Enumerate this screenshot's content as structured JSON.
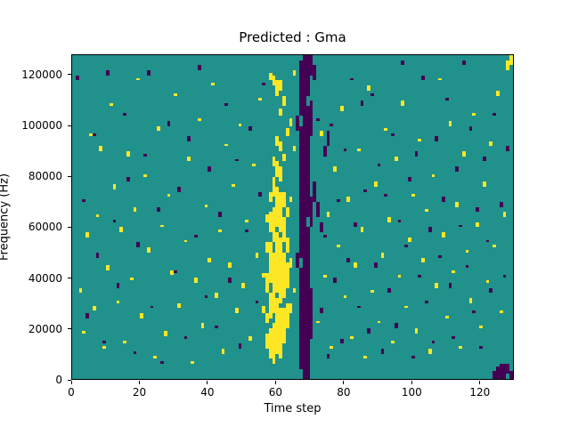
{
  "chart_data": {
    "type": "heatmap",
    "title": "Predicted : Gma",
    "xlabel": "Time step",
    "ylabel": "Frequency (Hz)",
    "x_range": [
      0,
      130
    ],
    "y_range_hz": [
      0,
      128000
    ],
    "x_ticks": [
      0,
      20,
      40,
      60,
      80,
      100,
      120
    ],
    "y_ticks": [
      0,
      20000,
      40000,
      60000,
      80000,
      100000,
      120000
    ],
    "grid": {
      "cols": 130,
      "rows": 128,
      "cell_unit_hz": 1000
    },
    "colors": {
      "mid": "#21918c",
      "high": "#fde725",
      "low": "#440154",
      "axis": "#000000"
    },
    "legend": null,
    "cells": {
      "high_runs": [
        [
          56,
          26,
          3
        ],
        [
          56,
          40,
          2
        ],
        [
          57,
          12,
          6
        ],
        [
          57,
          22,
          4
        ],
        [
          57,
          34,
          8
        ],
        [
          57,
          50,
          4
        ],
        [
          57,
          62,
          3
        ],
        [
          58,
          8,
          12
        ],
        [
          58,
          24,
          10
        ],
        [
          58,
          38,
          16
        ],
        [
          58,
          58,
          8
        ],
        [
          58,
          70,
          4
        ],
        [
          58,
          118,
          3
        ],
        [
          59,
          6,
          16
        ],
        [
          59,
          26,
          24
        ],
        [
          59,
          54,
          14
        ],
        [
          59,
          72,
          8
        ],
        [
          59,
          84,
          4
        ],
        [
          59,
          116,
          4
        ],
        [
          60,
          10,
          22
        ],
        [
          60,
          34,
          24
        ],
        [
          60,
          60,
          16
        ],
        [
          60,
          80,
          6
        ],
        [
          60,
          92,
          4
        ],
        [
          60,
          112,
          6
        ],
        [
          61,
          8,
          20
        ],
        [
          61,
          30,
          26
        ],
        [
          61,
          58,
          16
        ],
        [
          61,
          78,
          6
        ],
        [
          61,
          90,
          4
        ],
        [
          61,
          104,
          3
        ],
        [
          61,
          114,
          4
        ],
        [
          62,
          14,
          14
        ],
        [
          62,
          32,
          18
        ],
        [
          62,
          54,
          10
        ],
        [
          62,
          68,
          6
        ],
        [
          62,
          86,
          3
        ],
        [
          62,
          108,
          4
        ],
        [
          63,
          20,
          10
        ],
        [
          63,
          36,
          10
        ],
        [
          63,
          50,
          6
        ],
        [
          63,
          64,
          4
        ],
        [
          63,
          96,
          3
        ],
        [
          64,
          26,
          4
        ],
        [
          64,
          44,
          4
        ],
        [
          64,
          70,
          2
        ],
        [
          64,
          100,
          3
        ],
        [
          65,
          34,
          2
        ],
        [
          65,
          90,
          2
        ],
        [
          65,
          120,
          2
        ],
        [
          128,
          122,
          4
        ],
        [
          129,
          124,
          4
        ],
        [
          2,
          34,
          2
        ],
        [
          3,
          18,
          1
        ],
        [
          4,
          56,
          2
        ],
        [
          5,
          96,
          1
        ],
        [
          6,
          27,
          2
        ],
        [
          7,
          64,
          1
        ],
        [
          8,
          90,
          2
        ],
        [
          9,
          12,
          1
        ],
        [
          10,
          43,
          2
        ],
        [
          11,
          108,
          1
        ],
        [
          12,
          75,
          2
        ],
        [
          13,
          30,
          1
        ],
        [
          14,
          58,
          2
        ],
        [
          15,
          14,
          1
        ],
        [
          16,
          88,
          2
        ],
        [
          17,
          39,
          1
        ],
        [
          18,
          66,
          2
        ],
        [
          19,
          118,
          1
        ],
        [
          20,
          24,
          2
        ],
        [
          21,
          80,
          1
        ],
        [
          22,
          50,
          2
        ],
        [
          24,
          8,
          1
        ],
        [
          25,
          98,
          2
        ],
        [
          26,
          60,
          1
        ],
        [
          27,
          17,
          2
        ],
        [
          28,
          72,
          1
        ],
        [
          29,
          41,
          2
        ],
        [
          30,
          112,
          1
        ],
        [
          31,
          28,
          2
        ],
        [
          33,
          54,
          1
        ],
        [
          34,
          86,
          2
        ],
        [
          35,
          6,
          1
        ],
        [
          36,
          38,
          2
        ],
        [
          37,
          102,
          1
        ],
        [
          38,
          20,
          2
        ],
        [
          39,
          68,
          1
        ],
        [
          40,
          46,
          2
        ],
        [
          41,
          116,
          1
        ],
        [
          42,
          32,
          2
        ],
        [
          43,
          58,
          1
        ],
        [
          44,
          10,
          2
        ],
        [
          45,
          92,
          1
        ],
        [
          46,
          44,
          2
        ],
        [
          47,
          76,
          1
        ],
        [
          48,
          26,
          2
        ],
        [
          49,
          100,
          1
        ],
        [
          50,
          36,
          2
        ],
        [
          51,
          62,
          1
        ],
        [
          52,
          15,
          2
        ],
        [
          53,
          84,
          1
        ],
        [
          54,
          48,
          2
        ],
        [
          55,
          110,
          1
        ],
        [
          72,
          22,
          1
        ],
        [
          73,
          96,
          2
        ],
        [
          74,
          40,
          1
        ],
        [
          75,
          64,
          2
        ],
        [
          76,
          12,
          1
        ],
        [
          77,
          82,
          2
        ],
        [
          78,
          52,
          1
        ],
        [
          79,
          106,
          2
        ],
        [
          80,
          32,
          1
        ],
        [
          81,
          70,
          2
        ],
        [
          82,
          16,
          1
        ],
        [
          83,
          44,
          2
        ],
        [
          84,
          90,
          1
        ],
        [
          85,
          58,
          2
        ],
        [
          86,
          8,
          1
        ],
        [
          87,
          114,
          2
        ],
        [
          88,
          34,
          1
        ],
        [
          89,
          76,
          2
        ],
        [
          90,
          22,
          1
        ],
        [
          91,
          48,
          2
        ],
        [
          92,
          98,
          1
        ],
        [
          93,
          62,
          2
        ],
        [
          94,
          14,
          1
        ],
        [
          95,
          86,
          2
        ],
        [
          96,
          40,
          1
        ],
        [
          97,
          108,
          2
        ],
        [
          98,
          28,
          1
        ],
        [
          99,
          54,
          2
        ],
        [
          100,
          72,
          1
        ],
        [
          101,
          18,
          2
        ],
        [
          102,
          94,
          1
        ],
        [
          103,
          46,
          2
        ],
        [
          104,
          66,
          1
        ],
        [
          105,
          10,
          2
        ],
        [
          106,
          80,
          1
        ],
        [
          107,
          36,
          2
        ],
        [
          108,
          118,
          1
        ],
        [
          109,
          56,
          2
        ],
        [
          110,
          24,
          1
        ],
        [
          111,
          100,
          2
        ],
        [
          112,
          42,
          1
        ],
        [
          113,
          68,
          2
        ],
        [
          114,
          12,
          1
        ],
        [
          115,
          88,
          2
        ],
        [
          116,
          50,
          1
        ],
        [
          117,
          30,
          2
        ],
        [
          118,
          104,
          1
        ],
        [
          119,
          60,
          2
        ],
        [
          120,
          20,
          1
        ],
        [
          121,
          76,
          2
        ],
        [
          122,
          38,
          1
        ],
        [
          123,
          92,
          2
        ],
        [
          124,
          52,
          1
        ],
        [
          125,
          112,
          2
        ],
        [
          126,
          26,
          1
        ],
        [
          127,
          64,
          2
        ]
      ],
      "low_runs": [
        [
          66,
          44,
          6
        ],
        [
          66,
          98,
          6
        ],
        [
          67,
          4,
          40
        ],
        [
          67,
          48,
          52
        ],
        [
          67,
          104,
          22
        ],
        [
          68,
          0,
          128
        ],
        [
          69,
          0,
          60
        ],
        [
          69,
          64,
          44
        ],
        [
          69,
          112,
          16
        ],
        [
          70,
          16,
          20
        ],
        [
          70,
          60,
          12
        ],
        [
          70,
          96,
          14
        ],
        [
          70,
          120,
          8
        ],
        [
          71,
          70,
          8
        ],
        [
          71,
          118,
          6
        ],
        [
          72,
          64,
          6
        ],
        [
          73,
          58,
          4
        ],
        [
          74,
          88,
          4
        ],
        [
          75,
          92,
          6
        ],
        [
          124,
          0,
          3
        ],
        [
          125,
          0,
          5
        ],
        [
          126,
          0,
          6
        ],
        [
          127,
          0,
          6
        ],
        [
          128,
          2,
          4
        ],
        [
          129,
          0,
          3
        ],
        [
          1,
          118,
          2
        ],
        [
          3,
          70,
          1
        ],
        [
          4,
          24,
          2
        ],
        [
          6,
          96,
          1
        ],
        [
          7,
          48,
          2
        ],
        [
          9,
          14,
          1
        ],
        [
          10,
          120,
          2
        ],
        [
          12,
          62,
          1
        ],
        [
          13,
          36,
          2
        ],
        [
          15,
          104,
          1
        ],
        [
          16,
          78,
          2
        ],
        [
          18,
          10,
          1
        ],
        [
          19,
          52,
          2
        ],
        [
          21,
          88,
          1
        ],
        [
          22,
          120,
          2
        ],
        [
          23,
          28,
          1
        ],
        [
          25,
          66,
          2
        ],
        [
          26,
          6,
          1
        ],
        [
          28,
          100,
          2
        ],
        [
          30,
          42,
          1
        ],
        [
          31,
          74,
          2
        ],
        [
          33,
          16,
          1
        ],
        [
          34,
          94,
          2
        ],
        [
          36,
          56,
          1
        ],
        [
          37,
          122,
          2
        ],
        [
          39,
          32,
          1
        ],
        [
          40,
          82,
          2
        ],
        [
          42,
          20,
          1
        ],
        [
          43,
          64,
          2
        ],
        [
          45,
          108,
          1
        ],
        [
          46,
          38,
          2
        ],
        [
          48,
          86,
          1
        ],
        [
          49,
          12,
          2
        ],
        [
          51,
          58,
          1
        ],
        [
          52,
          98,
          2
        ],
        [
          54,
          30,
          1
        ],
        [
          55,
          72,
          2
        ],
        [
          56,
          116,
          1
        ],
        [
          72,
          102,
          1
        ],
        [
          73,
          26,
          2
        ],
        [
          74,
          56,
          1
        ],
        [
          75,
          8,
          2
        ],
        [
          76,
          100,
          1
        ],
        [
          77,
          38,
          2
        ],
        [
          78,
          70,
          1
        ],
        [
          79,
          14,
          2
        ],
        [
          80,
          90,
          1
        ],
        [
          81,
          46,
          2
        ],
        [
          82,
          118,
          1
        ],
        [
          83,
          60,
          2
        ],
        [
          84,
          28,
          1
        ],
        [
          85,
          108,
          2
        ],
        [
          86,
          74,
          1
        ],
        [
          87,
          18,
          2
        ],
        [
          88,
          112,
          1
        ],
        [
          89,
          44,
          2
        ],
        [
          90,
          84,
          1
        ],
        [
          91,
          10,
          2
        ],
        [
          92,
          72,
          1
        ],
        [
          93,
          34,
          2
        ],
        [
          94,
          96,
          1
        ],
        [
          95,
          20,
          2
        ],
        [
          96,
          62,
          1
        ],
        [
          97,
          124,
          2
        ],
        [
          98,
          52,
          1
        ],
        [
          99,
          78,
          2
        ],
        [
          100,
          8,
          1
        ],
        [
          101,
          88,
          2
        ],
        [
          102,
          40,
          1
        ],
        [
          103,
          118,
          2
        ],
        [
          104,
          30,
          1
        ],
        [
          105,
          58,
          2
        ],
        [
          106,
          14,
          1
        ],
        [
          107,
          94,
          2
        ],
        [
          108,
          48,
          1
        ],
        [
          109,
          70,
          2
        ],
        [
          110,
          110,
          1
        ],
        [
          111,
          36,
          2
        ],
        [
          112,
          16,
          1
        ],
        [
          113,
          82,
          2
        ],
        [
          114,
          60,
          1
        ],
        [
          115,
          124,
          2
        ],
        [
          116,
          44,
          1
        ],
        [
          117,
          98,
          2
        ],
        [
          118,
          26,
          1
        ],
        [
          119,
          66,
          2
        ],
        [
          120,
          12,
          1
        ],
        [
          121,
          86,
          2
        ],
        [
          122,
          54,
          1
        ],
        [
          123,
          34,
          2
        ],
        [
          124,
          104,
          1
        ],
        [
          126,
          68,
          2
        ],
        [
          127,
          40,
          1
        ],
        [
          128,
          90,
          2
        ]
      ]
    }
  }
}
